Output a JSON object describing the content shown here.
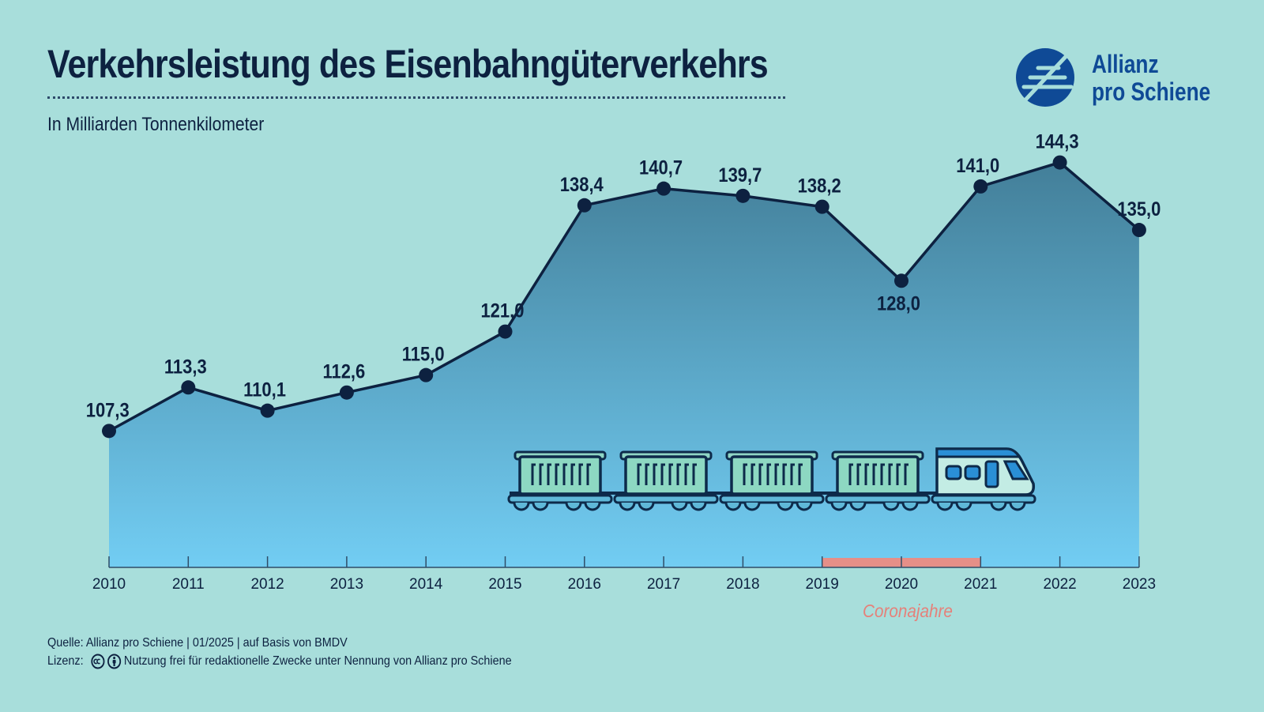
{
  "header": {
    "title": "Verkehrsleistung des Eisenbahngüterverkehrs",
    "subtitle": "In Milliarden Tonnenkilometer"
  },
  "logo": {
    "line1": "Allianz",
    "line2": "pro Schiene",
    "color": "#0f4a96"
  },
  "chart_data": {
    "type": "area",
    "x": [
      "2010",
      "2011",
      "2012",
      "2013",
      "2014",
      "2015",
      "2016",
      "2017",
      "2018",
      "2019",
      "2020",
      "2021",
      "2022",
      "2023"
    ],
    "values": [
      107.3,
      113.3,
      110.1,
      112.6,
      115.0,
      121.0,
      138.4,
      140.7,
      139.7,
      138.2,
      128.0,
      141.0,
      144.3,
      135.0
    ],
    "data_labels": [
      "107,3",
      "113,3",
      "110,1",
      "112,6",
      "115,0",
      "121,0",
      "138,4",
      "140,7",
      "139,7",
      "138,2",
      "128,0",
      "141,0",
      "144,3",
      "135,0"
    ],
    "title": "Verkehrsleistung des Eisenbahngüterverkehrs",
    "subtitle": "In Milliarden Tonnenkilometer",
    "xlabel": "",
    "ylabel": "",
    "ylim": [
      88.5,
      146
    ],
    "grid": false,
    "legend": "none",
    "highlight": {
      "from": "2019",
      "to": "2021",
      "label": "Coronajahre",
      "color": "#e58f88"
    },
    "colors": {
      "line": "#0d2140",
      "area_top": "#437f99",
      "area_bottom": "#72cdf3",
      "label_text": "#e5817a"
    }
  },
  "footer": {
    "source": "Quelle: Allianz pro Schiene | 01/2025 | auf Basis von BMDV",
    "license_label": "Lizenz:",
    "license_text": "Nutzung frei für redaktionelle Zwecke unter Nennung von Allianz pro Schiene"
  },
  "icons": [
    "cc-icon",
    "by-icon",
    "train-icon",
    "logo-icon"
  ]
}
